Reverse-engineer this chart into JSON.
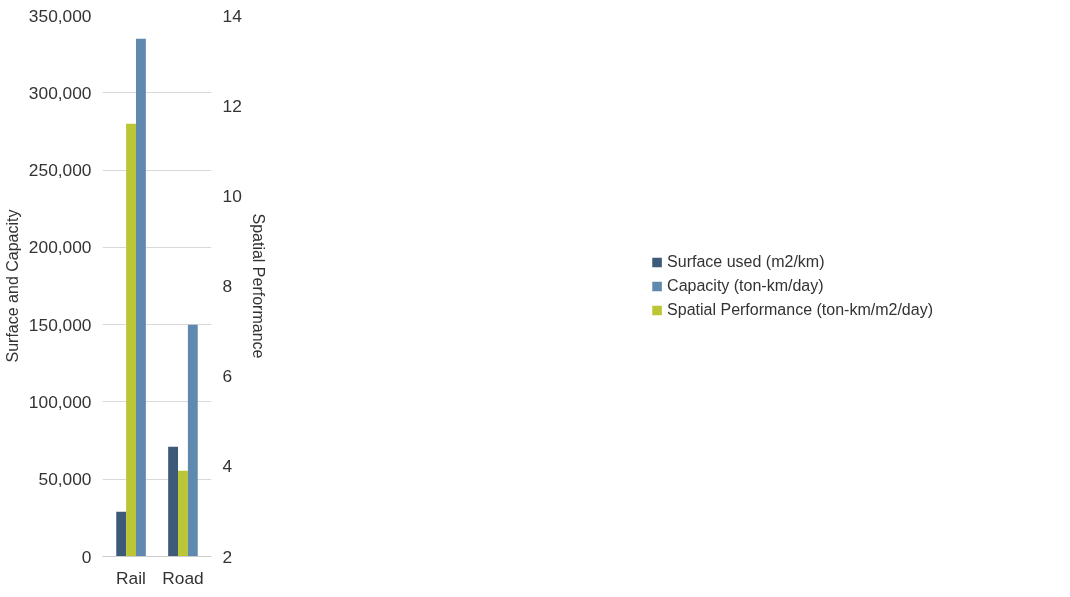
{
  "chart_data": {
    "type": "bar",
    "categories": [
      "Rail",
      "Road"
    ],
    "ylabel": "Surface and Capacity",
    "y2label": "Spatial Performance",
    "series": [
      {
        "name": "Surface used (m2/km)",
        "color": "#3d5a78",
        "values": [
          29000,
          71000
        ]
      },
      {
        "name": "Capacity (ton-km/day)",
        "color": "#6089b0",
        "values": [
          335000,
          150000
        ]
      },
      {
        "name": "Spatial Performance (ton-km/m2/day)",
        "color": "#bcc635",
        "values": [
          11.6,
          3.9
        ],
        "axis": "y2"
      }
    ],
    "ylim": [
      0,
      350000
    ],
    "yticks": [
      0,
      {
        "value": 50000,
        "label": "50,000"
      },
      {
        "value": 100000,
        "label": "100,000"
      },
      {
        "value": 150000,
        "label": "150,000"
      },
      {
        "value": 200000,
        "label": "200,000"
      },
      {
        "value": 250000,
        "label": "250,000"
      },
      {
        "value": 300000,
        "label": "300,000"
      },
      {
        "value": 350000,
        "label": "350,000"
      }
    ],
    "y2lim": [
      2,
      14
    ],
    "y2ticks": [
      2,
      4,
      6,
      8,
      10,
      12,
      14
    ],
    "grid": "y",
    "legend": "right"
  }
}
